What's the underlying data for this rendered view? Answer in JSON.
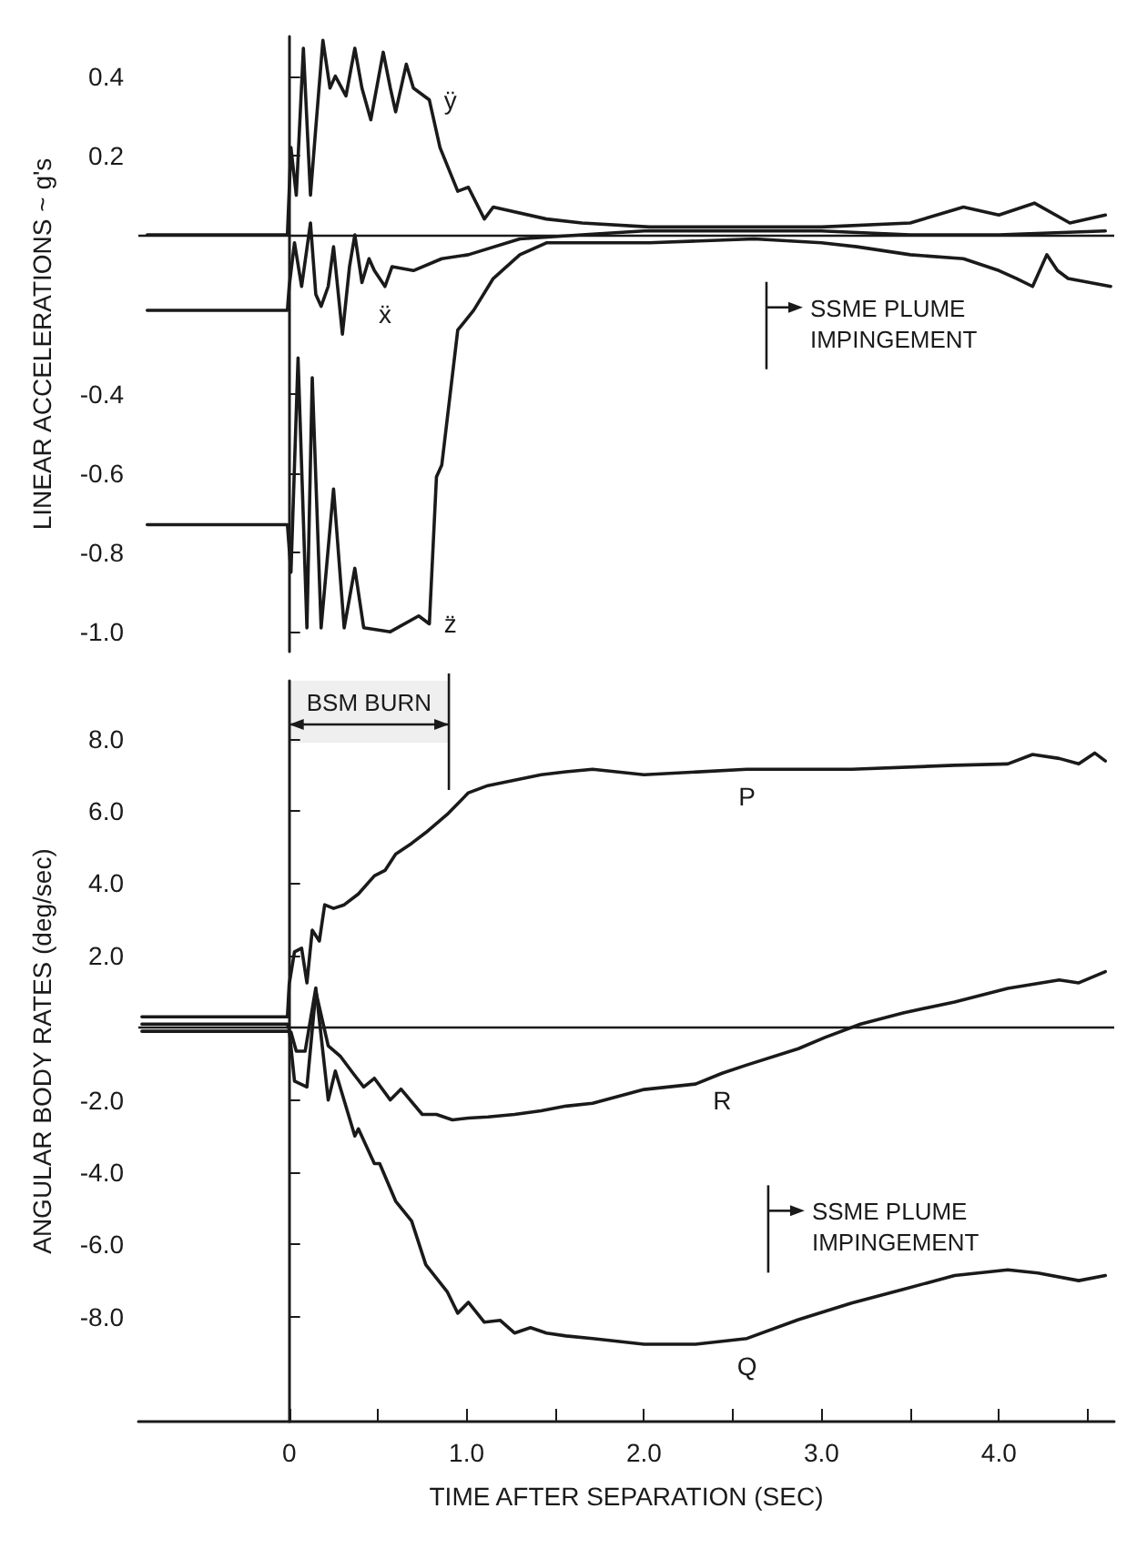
{
  "chart_data": [
    {
      "type": "line",
      "ylabel": "LINEAR ACCELERATIONS ~ g's",
      "xlim": [
        -0.85,
        4.65
      ],
      "ylim": [
        -1.05,
        0.5
      ],
      "yticks": [
        0.4,
        0.2,
        -0.4,
        -0.6,
        -0.8,
        {
          "value": -1,
          "label": "-1.0"
        }
      ],
      "tick_labels": "y",
      "marker": "none",
      "line_style": "solid",
      "ref_lines": [
        {
          "axis": "y",
          "value": 0
        },
        {
          "axis": "x",
          "value": 2.69,
          "label": "SSME PLUME IMPINGEMENT"
        }
      ],
      "series": [
        {
          "name": "ÿ",
          "color": "#1a1a1a",
          "x": [
            -0.8,
            -0.01,
            0.01,
            0.04,
            0.08,
            0.12,
            0.15,
            0.19,
            0.23,
            0.26,
            0.32,
            0.37,
            0.41,
            0.46,
            0.53,
            0.57,
            0.6,
            0.66,
            0.7,
            0.79,
            0.85,
            0.95,
            1.01,
            1.1,
            1.15,
            1.45,
            1.65,
            2.03,
            2.5,
            3.0,
            3.5,
            3.8,
            4.0,
            4.2,
            4.4,
            4.6
          ],
          "values": [
            0,
            0,
            0.22,
            0.1,
            0.47,
            0.1,
            0.27,
            0.49,
            0.37,
            0.4,
            0.35,
            0.47,
            0.37,
            0.29,
            0.46,
            0.37,
            0.31,
            0.43,
            0.37,
            0.34,
            0.22,
            0.11,
            0.12,
            0.04,
            0.07,
            0.04,
            0.03,
            0.02,
            0.02,
            0.02,
            0.03,
            0.07,
            0.05,
            0.08,
            0.03,
            0.05
          ]
        },
        {
          "name": "ẍ",
          "color": "#1a1a1a",
          "x": [
            -0.8,
            -0.01,
            0,
            0.03,
            0.07,
            0.12,
            0.15,
            0.18,
            0.22,
            0.25,
            0.3,
            0.34,
            0.37,
            0.41,
            0.45,
            0.48,
            0.54,
            0.58,
            0.7,
            0.86,
            1.01,
            1.3,
            1.65,
            2.0,
            2.5,
            3.0,
            3.5,
            4.0,
            4.6
          ],
          "values": [
            -0.19,
            -0.19,
            -0.13,
            -0.02,
            -0.13,
            0.03,
            -0.15,
            -0.18,
            -0.13,
            -0.03,
            -0.25,
            -0.08,
            0,
            -0.12,
            -0.06,
            -0.09,
            -0.13,
            -0.08,
            -0.09,
            -0.06,
            -0.05,
            -0.01,
            0,
            0.01,
            0.01,
            0.01,
            0,
            0,
            0.01
          ]
        },
        {
          "name": "z̈",
          "color": "#1a1a1a",
          "x": [
            -0.8,
            -0.01,
            0.01,
            0.05,
            0.1,
            0.13,
            0.18,
            0.25,
            0.31,
            0.37,
            0.42,
            0.57,
            0.73,
            0.79,
            0.83,
            0.86,
            0.95,
            1.04,
            1.15,
            1.3,
            1.45,
            1.74,
            2.03,
            2.62,
            3.0,
            3.2,
            3.5,
            3.8,
            4.0,
            4.1,
            4.19,
            4.27,
            4.33,
            4.39,
            4.63
          ],
          "values": [
            -0.73,
            -0.73,
            -0.85,
            -0.31,
            -0.99,
            -0.36,
            -0.99,
            -0.64,
            -0.99,
            -0.84,
            -0.99,
            -1.0,
            -0.96,
            -0.98,
            -0.61,
            -0.58,
            -0.24,
            -0.19,
            -0.11,
            -0.05,
            -0.02,
            -0.02,
            -0.02,
            -0.01,
            -0.02,
            -0.03,
            -0.05,
            -0.06,
            -0.09,
            -0.11,
            -0.13,
            -0.05,
            -0.09,
            -0.11,
            -0.13
          ]
        }
      ]
    },
    {
      "type": "line",
      "ylabel": "ANGULAR BODY RATES (deg/sec)",
      "xlabel": "TIME AFTER SEPARATION (SEC)",
      "xlim": [
        -0.85,
        4.65
      ],
      "ylim": [
        -10.9,
        9.6
      ],
      "xticks": [
        0,
        {
          "value": 0.5,
          "label": null
        },
        {
          "value": 1,
          "label": "1.0"
        },
        {
          "value": 1.5,
          "label": null
        },
        {
          "value": 2,
          "label": "2.0"
        },
        {
          "value": 2.5,
          "label": null
        },
        {
          "value": 3,
          "label": "3.0"
        },
        {
          "value": 3.5,
          "label": null
        },
        {
          "value": 4,
          "label": "4.0"
        },
        {
          "value": 4.5,
          "label": null
        }
      ],
      "yticks": [
        {
          "value": 8,
          "label": "8.0"
        },
        {
          "value": 6,
          "label": "6.0"
        },
        {
          "value": 4,
          "label": "4.0"
        },
        {
          "value": 2,
          "label": "2.0"
        },
        {
          "value": -2,
          "label": "-2.0"
        },
        {
          "value": -4,
          "label": "-4.0"
        },
        {
          "value": -6,
          "label": "-6.0"
        },
        {
          "value": -8,
          "label": "-8.0"
        }
      ],
      "marker": "none",
      "line_style": "solid",
      "ref_lines": [
        {
          "axis": "y",
          "value": 0
        },
        {
          "axis": "x",
          "value": 2.7,
          "label": "SSME PLUME IMPINGEMENT"
        }
      ],
      "bands": [
        {
          "axis": "x",
          "from": 0,
          "to": 0.9,
          "label": "BSM BURN"
        }
      ],
      "series": [
        {
          "name": "P",
          "color": "#1a1a1a",
          "x": [
            -0.83,
            -0.01,
            0,
            0.03,
            0.07,
            0.1,
            0.13,
            0.17,
            0.2,
            0.25,
            0.31,
            0.39,
            0.48,
            0.54,
            0.6,
            0.69,
            0.77,
            0.89,
            1.01,
            1.12,
            1.27,
            1.42,
            1.56,
            1.71,
            2.0,
            2.58,
            3.17,
            3.75,
            4.05,
            4.19,
            4.34,
            4.45,
            4.54,
            4.6
          ],
          "values": [
            0.3,
            0.3,
            1.2,
            2.1,
            2.2,
            1.24,
            2.7,
            2.4,
            3.4,
            3.3,
            3.4,
            3.7,
            4.2,
            4.35,
            4.8,
            5.1,
            5.4,
            5.9,
            6.5,
            6.7,
            6.85,
            7.0,
            7.08,
            7.15,
            7.0,
            7.15,
            7.15,
            7.26,
            7.3,
            7.56,
            7.45,
            7.3,
            7.6,
            7.38
          ]
        },
        {
          "name": "R",
          "color": "#1a1a1a",
          "x": [
            -0.83,
            -0.01,
            0,
            0.03,
            0.1,
            0.15,
            0.22,
            0.29,
            0.36,
            0.42,
            0.48,
            0.57,
            0.63,
            0.75,
            0.83,
            0.92,
            1.01,
            1.12,
            1.27,
            1.42,
            1.56,
            1.71,
            2.0,
            2.29,
            2.44,
            2.58,
            2.87,
            3.02,
            3.22,
            3.46,
            3.75,
            4.05,
            4.34,
            4.45,
            4.6
          ],
          "values": [
            0.1,
            0.1,
            -0.05,
            -1.48,
            -1.64,
            1.0,
            -0.5,
            -0.8,
            -1.26,
            -1.64,
            -1.4,
            -2.0,
            -1.7,
            -2.4,
            -2.4,
            -2.55,
            -2.5,
            -2.47,
            -2.4,
            -2.3,
            -2.17,
            -2.09,
            -1.71,
            -1.56,
            -1.26,
            -1.03,
            -0.58,
            -0.27,
            0.1,
            0.41,
            0.71,
            1.09,
            1.32,
            1.24,
            1.55
          ]
        },
        {
          "name": "Q",
          "color": "#1a1a1a",
          "x": [
            -0.83,
            -0.01,
            0.01,
            0.04,
            0.09,
            0.15,
            0.22,
            0.26,
            0.37,
            0.39,
            0.48,
            0.51,
            0.6,
            0.69,
            0.77,
            0.89,
            0.95,
            1.01,
            1.1,
            1.19,
            1.27,
            1.36,
            1.45,
            1.56,
            1.71,
            2.0,
            2.29,
            2.58,
            2.87,
            3.17,
            3.46,
            3.75,
            4.05,
            4.22,
            4.45,
            4.6
          ],
          "values": [
            -0.1,
            -0.1,
            -0.12,
            -0.65,
            -0.65,
            1.1,
            -2.0,
            -1.2,
            -3.0,
            -2.8,
            -3.76,
            -3.76,
            -4.8,
            -5.35,
            -6.56,
            -7.3,
            -7.9,
            -7.6,
            -8.15,
            -8.1,
            -8.45,
            -8.3,
            -8.45,
            -8.53,
            -8.6,
            -8.76,
            -8.76,
            -8.6,
            -8.08,
            -7.62,
            -7.24,
            -6.86,
            -6.7,
            -6.79,
            -7.0,
            -6.86
          ]
        }
      ]
    }
  ]
}
